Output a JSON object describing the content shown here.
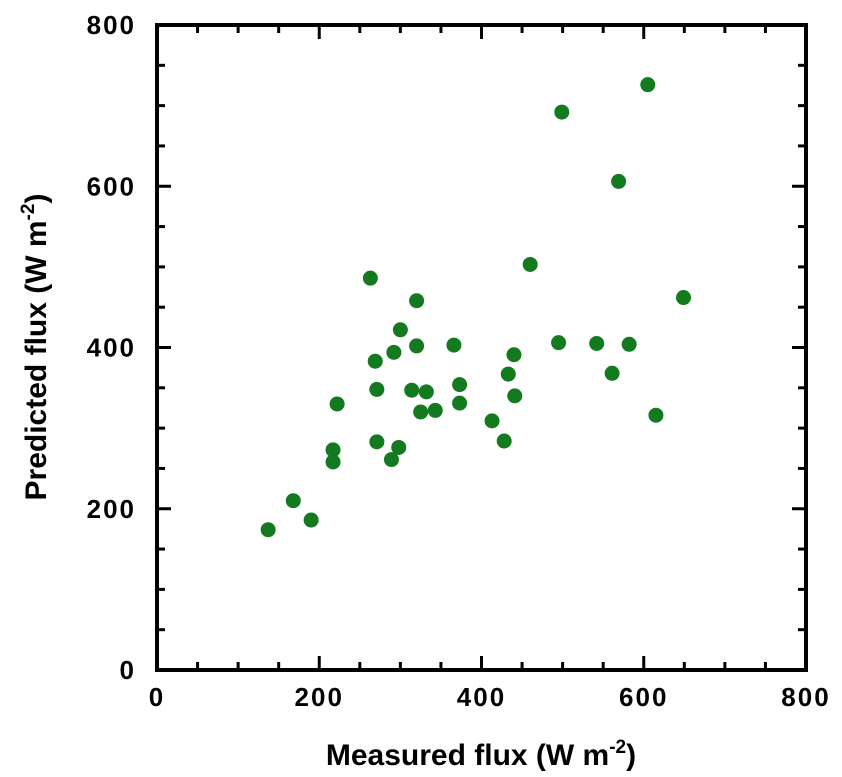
{
  "chart_data": {
    "type": "scatter",
    "title": "",
    "xlabel": {
      "text": "Measured flux (W m",
      "sup": "-2",
      "tail": ")"
    },
    "ylabel": {
      "text": "Predicted flux (W m",
      "sup": "-2",
      "tail": ")"
    },
    "xlim": [
      0,
      800
    ],
    "ylim": [
      0,
      800
    ],
    "xticks": [
      "0",
      "200",
      "400",
      "600",
      "800"
    ],
    "yticks": [
      "0",
      "200",
      "400",
      "600",
      "800"
    ],
    "grid": false,
    "marker_color": "#137a1f",
    "series": [
      {
        "points": [
          [
            137,
            174
          ],
          [
            168,
            210
          ],
          [
            190,
            186
          ],
          [
            217,
            273
          ],
          [
            217,
            258
          ],
          [
            222,
            330
          ],
          [
            263,
            486
          ],
          [
            269,
            383
          ],
          [
            271,
            348
          ],
          [
            271,
            283
          ],
          [
            289,
            261
          ],
          [
            292,
            394
          ],
          [
            298,
            276
          ],
          [
            300,
            422
          ],
          [
            314,
            347
          ],
          [
            320,
            458
          ],
          [
            320,
            402
          ],
          [
            325,
            320
          ],
          [
            332,
            345
          ],
          [
            343,
            322
          ],
          [
            366,
            403
          ],
          [
            373,
            354
          ],
          [
            373,
            331
          ],
          [
            413,
            309
          ],
          [
            428,
            284
          ],
          [
            433,
            367
          ],
          [
            440,
            391
          ],
          [
            441,
            340
          ],
          [
            460,
            503
          ],
          [
            495,
            406
          ],
          [
            499,
            692
          ],
          [
            542,
            405
          ],
          [
            561,
            368
          ],
          [
            569,
            606
          ],
          [
            582,
            404
          ],
          [
            605,
            726
          ],
          [
            615,
            316
          ],
          [
            649,
            462
          ]
        ]
      }
    ]
  }
}
